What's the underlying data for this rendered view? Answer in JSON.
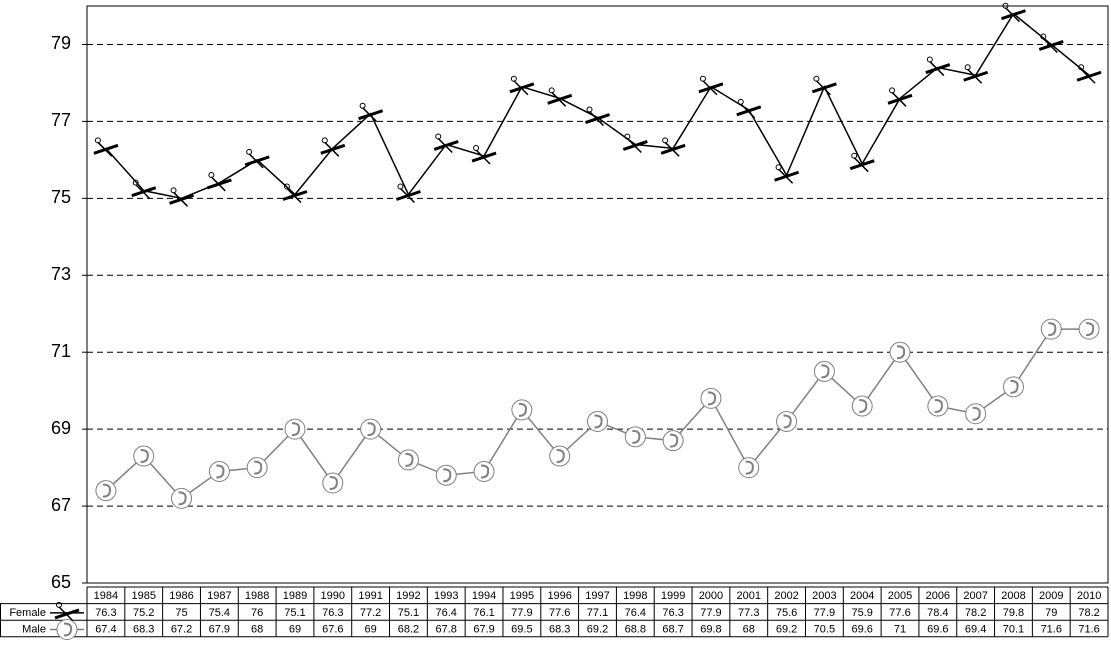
{
  "chart_data": {
    "type": "line",
    "categories": [
      "1984",
      "1985",
      "1986",
      "1987",
      "1988",
      "1989",
      "1990",
      "1991",
      "1992",
      "1993",
      "1994",
      "1995",
      "1996",
      "1997",
      "1998",
      "1999",
      "2000",
      "2001",
      "2002",
      "2003",
      "2004",
      "2005",
      "2006",
      "2007",
      "2008",
      "2009",
      "2010"
    ],
    "series": [
      {
        "name": "Female",
        "color": "#000000",
        "values": [
          76.3,
          75.2,
          75,
          75.4,
          76,
          75.1,
          76.3,
          77.2,
          75.1,
          76.4,
          76.1,
          77.9,
          77.6,
          77.1,
          76.4,
          76.3,
          77.9,
          77.3,
          75.6,
          77.9,
          75.9,
          77.6,
          78.4,
          78.2,
          79.8,
          79,
          78.2
        ]
      },
      {
        "name": "Male",
        "color": "#808080",
        "values": [
          67.4,
          68.3,
          67.2,
          67.9,
          68,
          69,
          67.6,
          69,
          68.2,
          67.8,
          67.9,
          69.5,
          68.3,
          69.2,
          68.8,
          68.7,
          69.8,
          68,
          69.2,
          70.5,
          69.6,
          71,
          69.6,
          69.4,
          70.1,
          71.6,
          71.6
        ]
      }
    ],
    "ylim": [
      65,
      80
    ],
    "yticks": [
      65,
      67,
      69,
      71,
      73,
      75,
      77,
      79
    ],
    "grid": true
  }
}
